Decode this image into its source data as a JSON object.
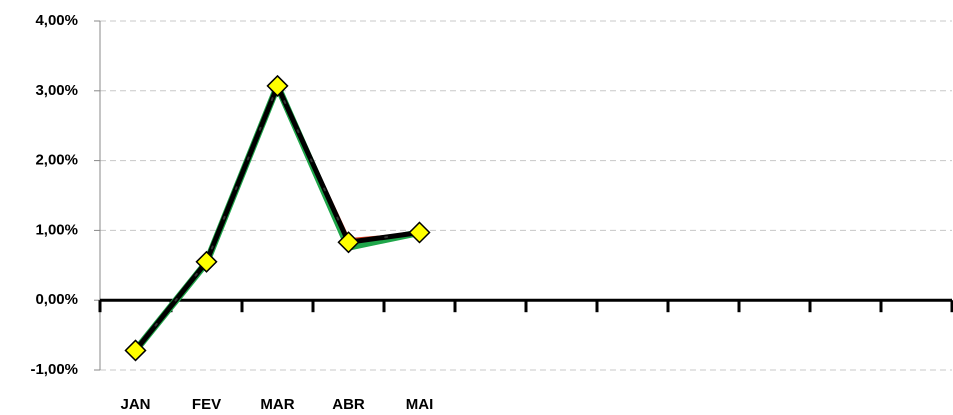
{
  "chart_data": {
    "type": "line",
    "categories": [
      "JAN",
      "FEV",
      "MAR",
      "ABR",
      "MAI",
      null,
      null,
      null,
      null,
      null,
      null,
      null
    ],
    "series": [
      {
        "color": "#e03c1f",
        "values": [
          -0.72,
          0.55,
          3.05,
          0.86,
          0.95,
          null,
          null,
          null,
          null,
          null,
          null,
          null
        ]
      },
      {
        "color": "#1fa64a",
        "values": [
          -0.72,
          0.54,
          3.07,
          0.76,
          0.97,
          null,
          null,
          null,
          null,
          null,
          null,
          null
        ]
      },
      {
        "color": "#000000",
        "values": [
          -0.72,
          0.55,
          3.07,
          0.83,
          0.97,
          null,
          null,
          null,
          null,
          null,
          null,
          null
        ]
      }
    ],
    "marker_color": "#ffff00",
    "ylim": [
      -1,
      4
    ],
    "yticks": [
      {
        "value": -1,
        "label": "-1,00%"
      },
      {
        "value": 0,
        "label": "0,00%"
      },
      {
        "value": 1,
        "label": "1,00%"
      },
      {
        "value": 2,
        "label": "2,00%"
      },
      {
        "value": 3,
        "label": "3,00%"
      },
      {
        "value": 4,
        "label": "4,00%"
      }
    ],
    "grid": true
  }
}
